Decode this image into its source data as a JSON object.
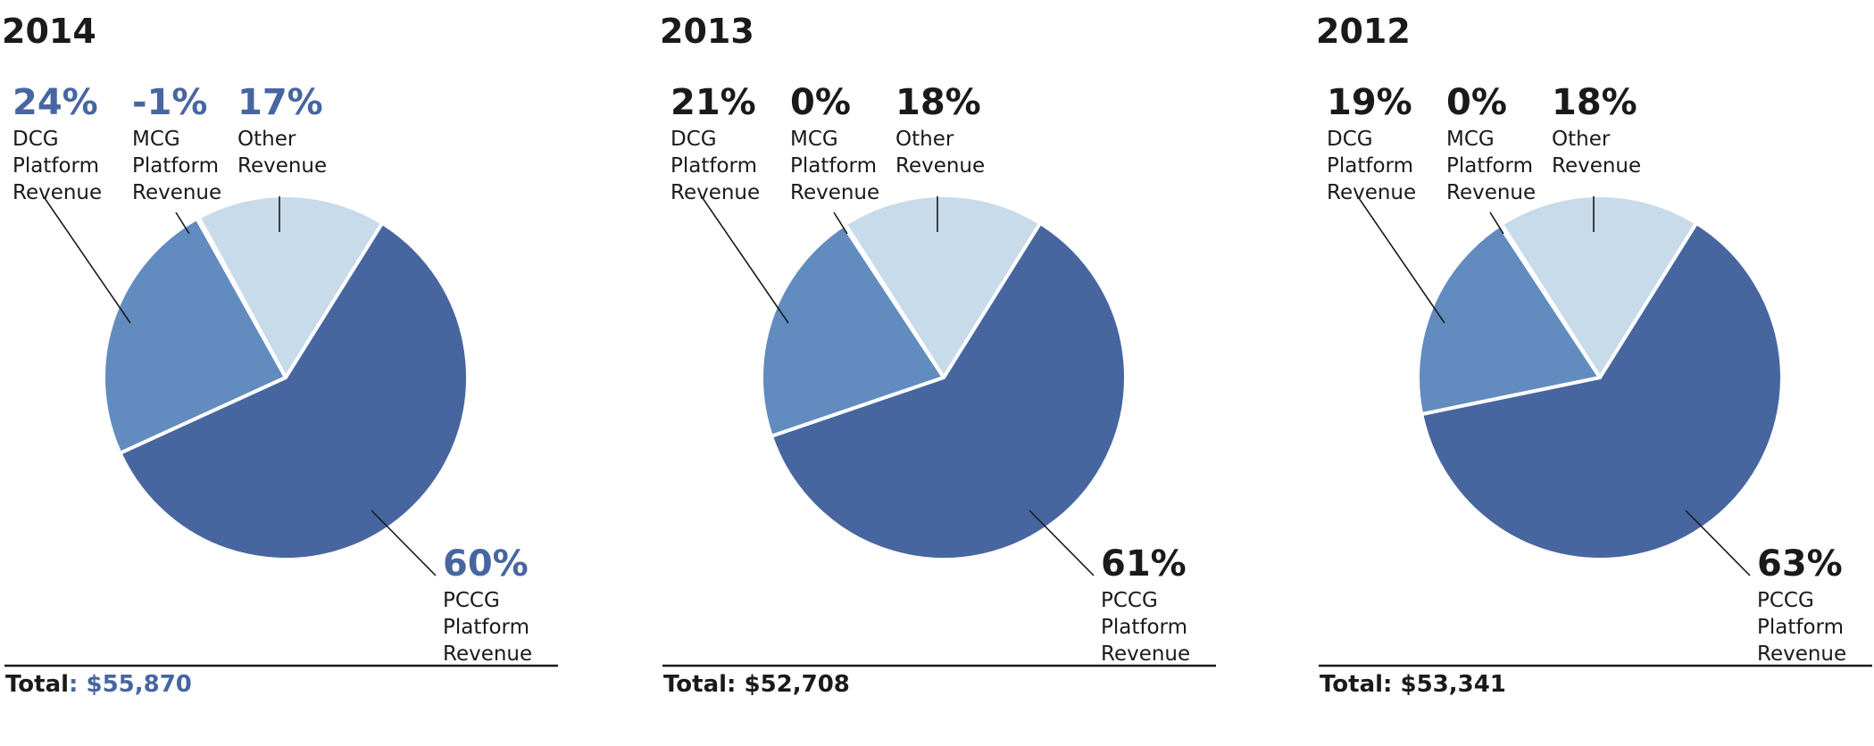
{
  "colors": {
    "pccg": "#4766a0",
    "dcg": "#628cbf",
    "mcg": "#8caed8",
    "other": "#c8dbea",
    "highlight_text": "#4766a0",
    "normal_text": "#1a1a1a"
  },
  "chart_data": [
    {
      "type": "pie",
      "title": "2014",
      "highlight": true,
      "total_label": "Total",
      "total_value": ": $55,870",
      "slices": [
        {
          "key": "pccg",
          "pct_label": "60%",
          "label_lines": [
            "PCCG",
            "Platform",
            "Revenue"
          ],
          "value": 60
        },
        {
          "key": "dcg",
          "pct_label": "24%",
          "label_lines": [
            "DCG",
            "Platform",
            "Revenue"
          ],
          "value": 24
        },
        {
          "key": "mcg",
          "pct_label": "-1%",
          "label_lines": [
            "MCG",
            "Platform",
            "Revenue"
          ],
          "value": -1
        },
        {
          "key": "other",
          "pct_label": "17%",
          "label_lines": [
            "Other",
            "Revenue"
          ],
          "value": 17
        }
      ]
    },
    {
      "type": "pie",
      "title": "2013",
      "highlight": false,
      "total_label": "Total",
      "total_value": ": $52,708",
      "slices": [
        {
          "key": "pccg",
          "pct_label": "61%",
          "label_lines": [
            "PCCG",
            "Platform",
            "Revenue"
          ],
          "value": 61
        },
        {
          "key": "dcg",
          "pct_label": "21%",
          "label_lines": [
            "DCG",
            "Platform",
            "Revenue"
          ],
          "value": 21
        },
        {
          "key": "mcg",
          "pct_label": "0%",
          "label_lines": [
            "MCG",
            "Platform",
            "Revenue"
          ],
          "value": 0
        },
        {
          "key": "other",
          "pct_label": "18%",
          "label_lines": [
            "Other",
            "Revenue"
          ],
          "value": 18
        }
      ]
    },
    {
      "type": "pie",
      "title": "2012",
      "highlight": false,
      "total_label": "Total",
      "total_value": ": $53,341",
      "slices": [
        {
          "key": "pccg",
          "pct_label": "63%",
          "label_lines": [
            "PCCG",
            "Platform",
            "Revenue"
          ],
          "value": 63
        },
        {
          "key": "dcg",
          "pct_label": "19%",
          "label_lines": [
            "DCG",
            "Platform",
            "Revenue"
          ],
          "value": 19
        },
        {
          "key": "mcg",
          "pct_label": "0%",
          "label_lines": [
            "MCG",
            "Platform",
            "Revenue"
          ],
          "value": 0
        },
        {
          "key": "other",
          "pct_label": "18%",
          "label_lines": [
            "Other",
            "Revenue"
          ],
          "value": 18
        }
      ]
    }
  ]
}
